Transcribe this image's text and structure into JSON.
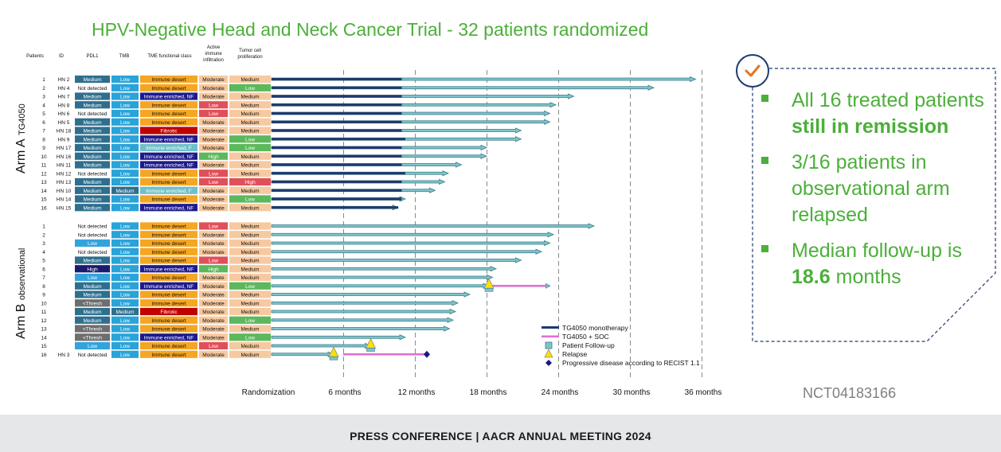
{
  "title": "HPV-Negative Head and Neck Cancer Trial - 32 patients randomized",
  "headers": {
    "patients": "Patients",
    "id": "ID",
    "pdl1": "PDL1",
    "tmb": "TMB",
    "tme": "TME functional class",
    "immune": [
      "Active",
      "immune",
      "infiltration"
    ],
    "prolif": [
      "Tumor cell",
      "proliferation"
    ]
  },
  "arm_a": {
    "label_bold": "Arm A",
    "label_small": "TG4050"
  },
  "arm_b": {
    "label_bold": "Arm B",
    "label_small": "observational"
  },
  "colors": {
    "pdl1_medium": "#2e6f8e",
    "pdl1_high": "#1a1a6e",
    "pdl1_low": "#33a3dc",
    "pdl1_thresh": "#6e6e6e",
    "tmb_low": "#29a3d8",
    "tmb_medium": "#2e6f8e",
    "tme_desert": "#f5a623",
    "tme_enriched_nf": "#1e1a8c",
    "tme_enriched_f": "#6fc0c8",
    "tme_fibrotic": "#c00000",
    "immune_moderate": "#f7c9a0",
    "immune_low": "#e0505a",
    "immune_high": "#5cb85c",
    "prolif_medium": "#f7c9a0",
    "prolif_low": "#5cb85c",
    "prolif_high": "#e0505a",
    "therapy": "#1f3a6e",
    "soc": "#e070d0",
    "followup_fill": "#7fc4cc",
    "followup_stroke": "#3a7a85",
    "relapse": "#ffe000",
    "pd": "#1a1a7e",
    "accent": "#4caf3a"
  },
  "chart_data": {
    "type": "swimmer",
    "x_unit": "months",
    "xlim": [
      0,
      36
    ],
    "x_ticks": [
      {
        "value": 0,
        "label": "Randomization"
      },
      {
        "value": 6,
        "label": "6 months"
      },
      {
        "value": 12,
        "label": "12 months"
      },
      {
        "value": 18,
        "label": "18 months"
      },
      {
        "value": 24,
        "label": "24 months"
      },
      {
        "value": 30,
        "label": "30 months"
      },
      {
        "value": 36,
        "label": "36  months"
      }
    ],
    "legend": [
      {
        "key": "therapy",
        "label": "TG4050 monotherapy"
      },
      {
        "key": "soc",
        "label": "TG4050 + SOC"
      },
      {
        "key": "followup",
        "label": "Patient Follow-up"
      },
      {
        "key": "relapse",
        "label": "Relapse"
      },
      {
        "key": "pd",
        "label": "Progressive disease according to RECIST 1.1"
      }
    ],
    "arm_a": [
      {
        "n": "1",
        "id": "HN 2",
        "pdl1": "Medium",
        "tmb": "Low",
        "tme": "Immune desert",
        "immune": "Moderate",
        "prolif": "Medium",
        "therapy": 10.9,
        "end": 35.5
      },
      {
        "n": "2",
        "id": "HN 4",
        "pdl1": "Not detected",
        "tmb": "Low",
        "tme": "Immune desert",
        "immune": "Moderate",
        "prolif": "Low",
        "therapy": 10.9,
        "end": 32.0
      },
      {
        "n": "3",
        "id": "HN 7",
        "pdl1": "Medium",
        "tmb": "Low",
        "tme": "Immune enriched, NF",
        "immune": "Moderate",
        "prolif": "Medium",
        "therapy": 10.9,
        "end": 25.3
      },
      {
        "n": "4",
        "id": "HN 8",
        "pdl1": "Medium",
        "tmb": "Low",
        "tme": "Immune desert",
        "immune": "Low",
        "prolif": "Medium",
        "therapy": 10.9,
        "end": 23.8
      },
      {
        "n": "5",
        "id": "HN 6",
        "pdl1": "Not detected",
        "tmb": "Low",
        "tme": "Immune desert",
        "immune": "Low",
        "prolif": "Medium",
        "therapy": 10.9,
        "end": 23.3
      },
      {
        "n": "6",
        "id": "HN 5",
        "pdl1": "Medium",
        "tmb": "Low",
        "tme": "Immune desert",
        "immune": "Moderate",
        "prolif": "Medium",
        "therapy": 10.9,
        "end": 23.3
      },
      {
        "n": "7",
        "id": "HN 18",
        "pdl1": "Medium",
        "tmb": "Low",
        "tme": "Fibrotic",
        "immune": "Moderate",
        "prolif": "Medium",
        "therapy": 10.9,
        "end": 20.9
      },
      {
        "n": "8",
        "id": "HN 9",
        "pdl1": "Medium",
        "tmb": "Low",
        "tme": "Immune enriched, NF",
        "immune": "Moderate",
        "prolif": "Low",
        "therapy": 11.2,
        "end": 20.9
      },
      {
        "n": "9",
        "id": "HN 17",
        "pdl1": "Medium",
        "tmb": "Low",
        "tme": "Immune enriched, F",
        "immune": "Moderate",
        "prolif": "Low",
        "therapy": 10.9,
        "end": 18.0
      },
      {
        "n": "10",
        "id": "HN 16",
        "pdl1": "Medium",
        "tmb": "Low",
        "tme": "Immune enriched, NF",
        "immune": "High",
        "prolif": "Medium",
        "therapy": 10.9,
        "end": 18.0
      },
      {
        "n": "11",
        "id": "HN 11",
        "pdl1": "Medium",
        "tmb": "Low",
        "tme": "Immune enriched, NF",
        "immune": "Moderate",
        "prolif": "Medium",
        "therapy": 10.9,
        "end": 15.9
      },
      {
        "n": "12",
        "id": "HN 12",
        "pdl1": "Not detected",
        "tmb": "Low",
        "tme": "Immune desert",
        "immune": "Low",
        "prolif": "Medium",
        "therapy": 11.2,
        "end": 14.8
      },
      {
        "n": "13",
        "id": "HN 13",
        "pdl1": "Medium",
        "tmb": "Low",
        "tme": "Immune desert",
        "immune": "Low",
        "prolif": "High",
        "therapy": 10.9,
        "end": 14.5
      },
      {
        "n": "14",
        "id": "HN 10",
        "pdl1": "Medium",
        "tmb": "Medium",
        "tme": "Immune enriched, F",
        "immune": "Moderate",
        "prolif": "Medium",
        "therapy": 10.9,
        "end": 13.7
      },
      {
        "n": "15",
        "id": "HN 14",
        "pdl1": "Medium",
        "tmb": "Low",
        "tme": "Immune desert",
        "immune": "Moderate",
        "prolif": "Low",
        "therapy": 10.9,
        "end": 11.2
      },
      {
        "n": "16",
        "id": "HN 15",
        "pdl1": "Medium",
        "tmb": "Low",
        "tme": "Immune enriched, NF",
        "immune": "Moderate",
        "prolif": "Medium",
        "therapy": 10.6,
        "end": 10.6
      }
    ],
    "arm_b": [
      {
        "n": "1",
        "id": "",
        "pdl1": "Not detected",
        "tmb": "Low",
        "tme": "Immune desert",
        "immune": "Low",
        "prolif": "Medium",
        "end": 27.0
      },
      {
        "n": "2",
        "id": "",
        "pdl1": "Not detected",
        "tmb": "Low",
        "tme": "Immune desert",
        "immune": "Moderate",
        "prolif": "Medium",
        "end": 23.6
      },
      {
        "n": "3",
        "id": "",
        "pdl1": "Low",
        "tmb": "Low",
        "tme": "Immune desert",
        "immune": "Moderate",
        "prolif": "Medium",
        "end": 23.3
      },
      {
        "n": "4",
        "id": "",
        "pdl1": "Not detected",
        "tmb": "Low",
        "tme": "Immune desert",
        "immune": "Moderate",
        "prolif": "Medium",
        "end": 22.6
      },
      {
        "n": "5",
        "id": "",
        "pdl1": "Medium",
        "tmb": "Low",
        "tme": "Immune desert",
        "immune": "Low",
        "prolif": "Medium",
        "end": 20.9
      },
      {
        "n": "6",
        "id": "",
        "pdl1": "High",
        "tmb": "Low",
        "tme": "Immune enriched, NF",
        "immune": "High",
        "prolif": "Medium",
        "end": 18.8
      },
      {
        "n": "7",
        "id": "",
        "pdl1": "Low",
        "tmb": "Low",
        "tme": "Immune desert",
        "immune": "Moderate",
        "prolif": "Medium",
        "end": 18.5
      },
      {
        "n": "8",
        "id": "",
        "pdl1": "Medium",
        "tmb": "Low",
        "tme": "Immune enriched, NF",
        "immune": "Moderate",
        "prolif": "Low",
        "end": 18.2,
        "soc_end": 23.3,
        "relapse": 18.2
      },
      {
        "n": "9",
        "id": "",
        "pdl1": "Medium",
        "tmb": "Low",
        "tme": "Immune desert",
        "immune": "Moderate",
        "prolif": "Medium",
        "end": 16.6
      },
      {
        "n": "10",
        "id": "",
        "pdl1": "<Thresh",
        "tmb": "Low",
        "tme": "Immune desert",
        "immune": "Moderate",
        "prolif": "Medium",
        "end": 15.6
      },
      {
        "n": "11",
        "id": "",
        "pdl1": "Medium",
        "tmb": "Medium",
        "tme": "Fibrotic",
        "immune": "Moderate",
        "prolif": "Medium",
        "end": 15.4
      },
      {
        "n": "12",
        "id": "",
        "pdl1": "Medium",
        "tmb": "Low",
        "tme": "Immune desert",
        "immune": "Moderate",
        "prolif": "Low",
        "end": 15.2
      },
      {
        "n": "13",
        "id": "",
        "pdl1": "<Thresh",
        "tmb": "Low",
        "tme": "Immune desert",
        "immune": "Moderate",
        "prolif": "Medium",
        "end": 14.9
      },
      {
        "n": "14",
        "id": "",
        "pdl1": "<Thresh",
        "tmb": "Low",
        "tme": "Immune enriched, NF",
        "immune": "Moderate",
        "prolif": "Low",
        "end": 11.2
      },
      {
        "n": "15",
        "id": "",
        "pdl1": "Low",
        "tmb": "Low",
        "tme": "Immune desert",
        "immune": "Low",
        "prolif": "Medium",
        "end": 8.3,
        "relapse": 8.3
      },
      {
        "n": "16",
        "id": "HN 3",
        "pdl1": "Not detected",
        "tmb": "Low",
        "tme": "Immune desert",
        "immune": "Moderate",
        "prolif": "Medium",
        "end": 5.2,
        "relapse": 5.2,
        "soc_start": 6.0,
        "soc_end": 13.0,
        "pd": 13.0
      }
    ]
  },
  "bullets": [
    {
      "pre": "All 16 treated patients ",
      "bold": "still in remission",
      "post": ""
    },
    {
      "pre": "3/16 patients in observational arm relapsed",
      "bold": "",
      "post": ""
    },
    {
      "pre": "Median follow-up is ",
      "bold": "18.6",
      "post": " months"
    }
  ],
  "nct": "NCT04183166",
  "footer": "PRESS CONFERENCE | AACR ANNUAL MEETING 2024"
}
